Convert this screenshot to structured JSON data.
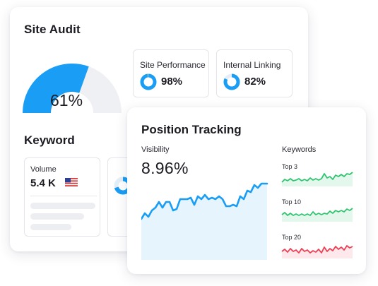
{
  "site_audit": {
    "title": "Site Audit",
    "gauge_value": "61%",
    "gauge_fraction": 0.61,
    "metrics": [
      {
        "label": "Site Performance",
        "value": "98%",
        "fraction": 0.98
      },
      {
        "label": "Internal Linking",
        "value": "82%",
        "fraction": 0.82
      }
    ]
  },
  "keyword": {
    "title": "Keyword",
    "volume_label": "Volume",
    "volume_value": "5.4 K",
    "flag_icon": "us-flag-icon"
  },
  "position_tracking": {
    "title": "Position Tracking",
    "visibility_label": "Visibility",
    "visibility_value": "8.96%",
    "keywords_label": "Keywords",
    "keyword_groups": [
      {
        "label": "Top 3",
        "color": "#2fc46f",
        "fill": "#e4f7ec"
      },
      {
        "label": "Top 10",
        "color": "#2fc46f",
        "fill": "#e4f7ec"
      },
      {
        "label": "Top 20",
        "color": "#ef3c52",
        "fill": "#fde9ec"
      }
    ]
  },
  "colors": {
    "accent_blue": "#1a9df5",
    "gauge_track": "#eef0f4",
    "area_fill": "#e6f4fd"
  }
}
